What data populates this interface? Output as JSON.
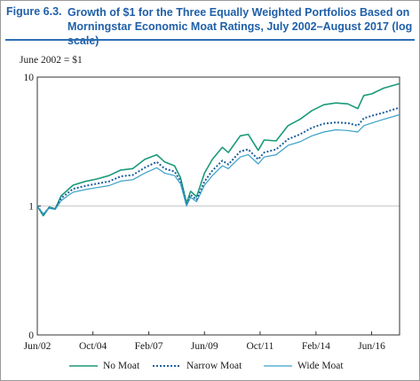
{
  "figure": {
    "label": "Figure 6.3.",
    "title": "Growth of $1 for the Three Equally Weighted Portfolios Based on Morningstar Economic Moat Ratings, July 2002–August 2017 (log scale)",
    "unit_note": "June 2002 = $1"
  },
  "colors": {
    "title": "#1f5fa8",
    "no_moat": "#1a9a7a",
    "narrow_moat": "#1f5f9e",
    "wide_moat": "#3aa0c8",
    "reference_line": "#c8c8c8"
  },
  "chart_data": {
    "type": "line",
    "scale": "log",
    "ylim": [
      0.1,
      10
    ],
    "y_ticks": [
      {
        "value": 10,
        "label": "10"
      },
      {
        "value": 1,
        "label": "1"
      },
      {
        "value": 0.1,
        "label": "0"
      }
    ],
    "xlim": [
      2002.5,
      2017.67
    ],
    "x_ticks": [
      {
        "value": 2002.5,
        "label": "Jun/02"
      },
      {
        "value": 2004.83,
        "label": "Oct/04"
      },
      {
        "value": 2007.17,
        "label": "Feb/07"
      },
      {
        "value": 2009.5,
        "label": "Jun/09"
      },
      {
        "value": 2011.83,
        "label": "Oct/11"
      },
      {
        "value": 2014.17,
        "label": "Feb/14"
      },
      {
        "value": 2016.5,
        "label": "Jun/16"
      }
    ],
    "reference_line": 1,
    "legend_position": "bottom",
    "x": [
      2002.5,
      2002.75,
      2003.0,
      2003.25,
      2003.5,
      2003.75,
      2004.0,
      2004.5,
      2005.0,
      2005.5,
      2006.0,
      2006.5,
      2007.0,
      2007.5,
      2007.83,
      2008.25,
      2008.5,
      2008.75,
      2008.92,
      2009.17,
      2009.5,
      2009.83,
      2010.25,
      2010.5,
      2011.0,
      2011.33,
      2011.75,
      2012.0,
      2012.5,
      2013.0,
      2013.5,
      2014.0,
      2014.5,
      2015.0,
      2015.5,
      2015.92,
      2016.17,
      2016.5,
      2017.0,
      2017.67
    ],
    "series": [
      {
        "name": "No Moat",
        "values": [
          1.0,
          0.84,
          0.98,
          0.95,
          1.2,
          1.32,
          1.45,
          1.55,
          1.62,
          1.72,
          1.9,
          1.95,
          2.3,
          2.5,
          2.2,
          2.05,
          1.65,
          1.05,
          1.3,
          1.18,
          1.8,
          2.3,
          2.85,
          2.6,
          3.5,
          3.6,
          2.7,
          3.25,
          3.2,
          4.2,
          4.7,
          5.5,
          6.1,
          6.3,
          6.2,
          5.7,
          7.2,
          7.4,
          8.2,
          8.9
        ]
      },
      {
        "name": "Narrow Moat",
        "values": [
          1.0,
          0.86,
          0.97,
          0.95,
          1.15,
          1.25,
          1.36,
          1.43,
          1.49,
          1.55,
          1.7,
          1.74,
          1.98,
          2.2,
          1.95,
          1.85,
          1.55,
          1.02,
          1.22,
          1.12,
          1.55,
          1.88,
          2.25,
          2.1,
          2.65,
          2.75,
          2.3,
          2.6,
          2.75,
          3.3,
          3.6,
          4.05,
          4.35,
          4.45,
          4.4,
          4.2,
          4.8,
          5.0,
          5.3,
          5.8
        ]
      },
      {
        "name": "Wide Moat",
        "values": [
          1.0,
          0.87,
          0.96,
          0.94,
          1.1,
          1.19,
          1.28,
          1.34,
          1.39,
          1.44,
          1.56,
          1.6,
          1.8,
          1.98,
          1.8,
          1.72,
          1.48,
          1.0,
          1.17,
          1.08,
          1.45,
          1.72,
          2.05,
          1.95,
          2.4,
          2.5,
          2.12,
          2.4,
          2.5,
          2.95,
          3.15,
          3.5,
          3.75,
          3.9,
          3.85,
          3.75,
          4.2,
          4.4,
          4.7,
          5.1
        ]
      }
    ]
  }
}
